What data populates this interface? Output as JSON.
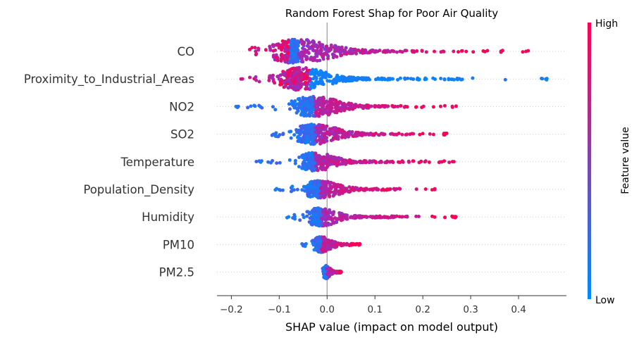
{
  "chart_data": {
    "type": "scatter",
    "subtype": "shap-beeswarm",
    "title": "Random Forest Shap for Poor Air Quality",
    "xlabel": "SHAP value (impact on model output)",
    "xlim": [
      -0.23,
      0.5
    ],
    "xticks": [
      -0.2,
      -0.1,
      0.0,
      0.1,
      0.2,
      0.3,
      0.4
    ],
    "xtick_labels": [
      "−0.2",
      "−0.1",
      "0.0",
      "0.1",
      "0.2",
      "0.3",
      "0.4"
    ],
    "colorbar": {
      "label": "Feature value",
      "high_label": "High",
      "low_label": "Low",
      "low_color": "#008bfb",
      "high_color": "#ff0052"
    },
    "grid": false,
    "features": [
      {
        "name": "CO",
        "min": -0.17,
        "max": 0.44,
        "mode": -0.06,
        "spread": 0.05,
        "max_height": 16,
        "count": 460,
        "skew": 2.2
      },
      {
        "name": "Proximity_to_Industrial_Areas",
        "min": -0.18,
        "max": 0.46,
        "mode": -0.055,
        "spread": 0.04,
        "max_height": 15,
        "count": 420,
        "skew": 2.2
      },
      {
        "name": "NO2",
        "min": -0.195,
        "max": 0.27,
        "mode": -0.028,
        "spread": 0.04,
        "max_height": 13,
        "count": 400,
        "skew": 1.8
      },
      {
        "name": "SO2",
        "min": -0.115,
        "max": 0.25,
        "mode": -0.025,
        "spread": 0.035,
        "max_height": 13,
        "count": 380,
        "skew": 1.8
      },
      {
        "name": "Temperature",
        "min": -0.155,
        "max": 0.265,
        "mode": -0.025,
        "spread": 0.03,
        "max_height": 12,
        "count": 360,
        "skew": 1.8
      },
      {
        "name": "Population_Density",
        "min": -0.11,
        "max": 0.225,
        "mode": -0.015,
        "spread": 0.03,
        "max_height": 11,
        "count": 340,
        "skew": 1.8
      },
      {
        "name": "Humidity",
        "min": -0.085,
        "max": 0.27,
        "mode": -0.012,
        "spread": 0.025,
        "max_height": 12,
        "count": 340,
        "skew": 1.8
      },
      {
        "name": "PM10",
        "min": -0.055,
        "max": 0.07,
        "mode": -0.012,
        "spread": 0.015,
        "max_height": 10,
        "count": 260,
        "skew": 1.3
      },
      {
        "name": "PM2.5",
        "min": -0.01,
        "max": 0.032,
        "mode": -0.002,
        "spread": 0.006,
        "max_height": 8,
        "count": 150,
        "skew": 1.0
      }
    ]
  }
}
